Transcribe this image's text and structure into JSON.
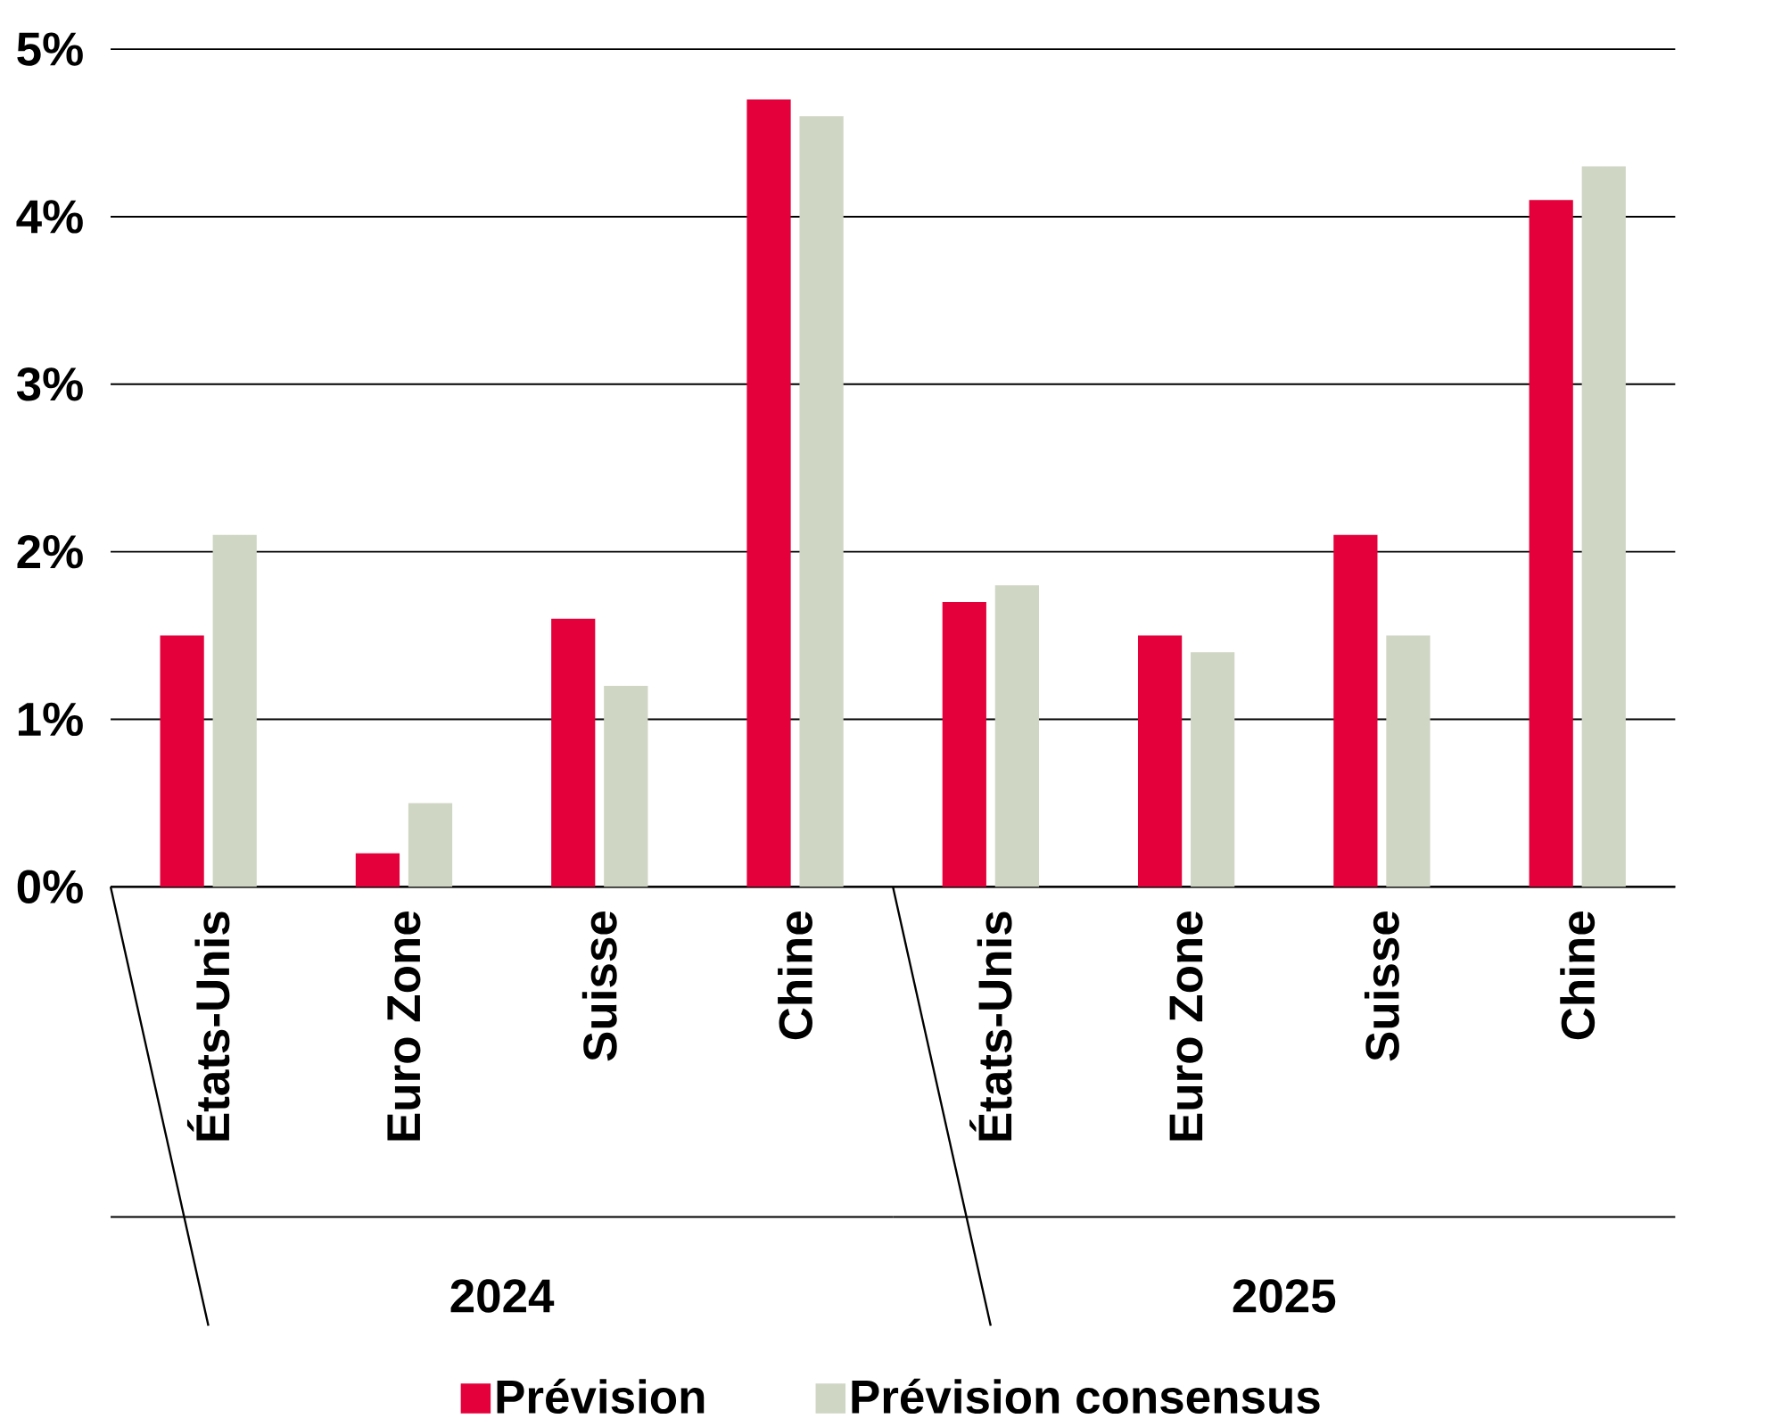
{
  "chart_data": {
    "type": "bar",
    "categories": [
      "États-Unis",
      "Euro Zone",
      "Suisse",
      "Chine",
      "États-Unis",
      "Euro Zone",
      "Suisse",
      "Chine"
    ],
    "series": [
      {
        "name": "Prévision",
        "color": "#e4003a",
        "values": [
          1.5,
          0.2,
          1.6,
          4.7,
          1.7,
          1.5,
          2.1,
          4.1
        ]
      },
      {
        "name": "Prévision consensus",
        "color": "#cfd6c4",
        "values": [
          2.1,
          0.5,
          1.2,
          4.6,
          1.8,
          1.4,
          1.5,
          4.3
        ]
      }
    ],
    "annotations": [
      "2024",
      "2025"
    ],
    "ylim": [
      0,
      5
    ],
    "yticks": [
      {
        "value": 0,
        "label": "0%"
      },
      {
        "value": 1,
        "label": "1%"
      },
      {
        "value": 2,
        "label": "2%"
      },
      {
        "value": 3,
        "label": "3%"
      },
      {
        "value": 4,
        "label": "4%"
      },
      {
        "value": 5,
        "label": "5%"
      }
    ],
    "grid": "y",
    "legend": "bottom"
  }
}
